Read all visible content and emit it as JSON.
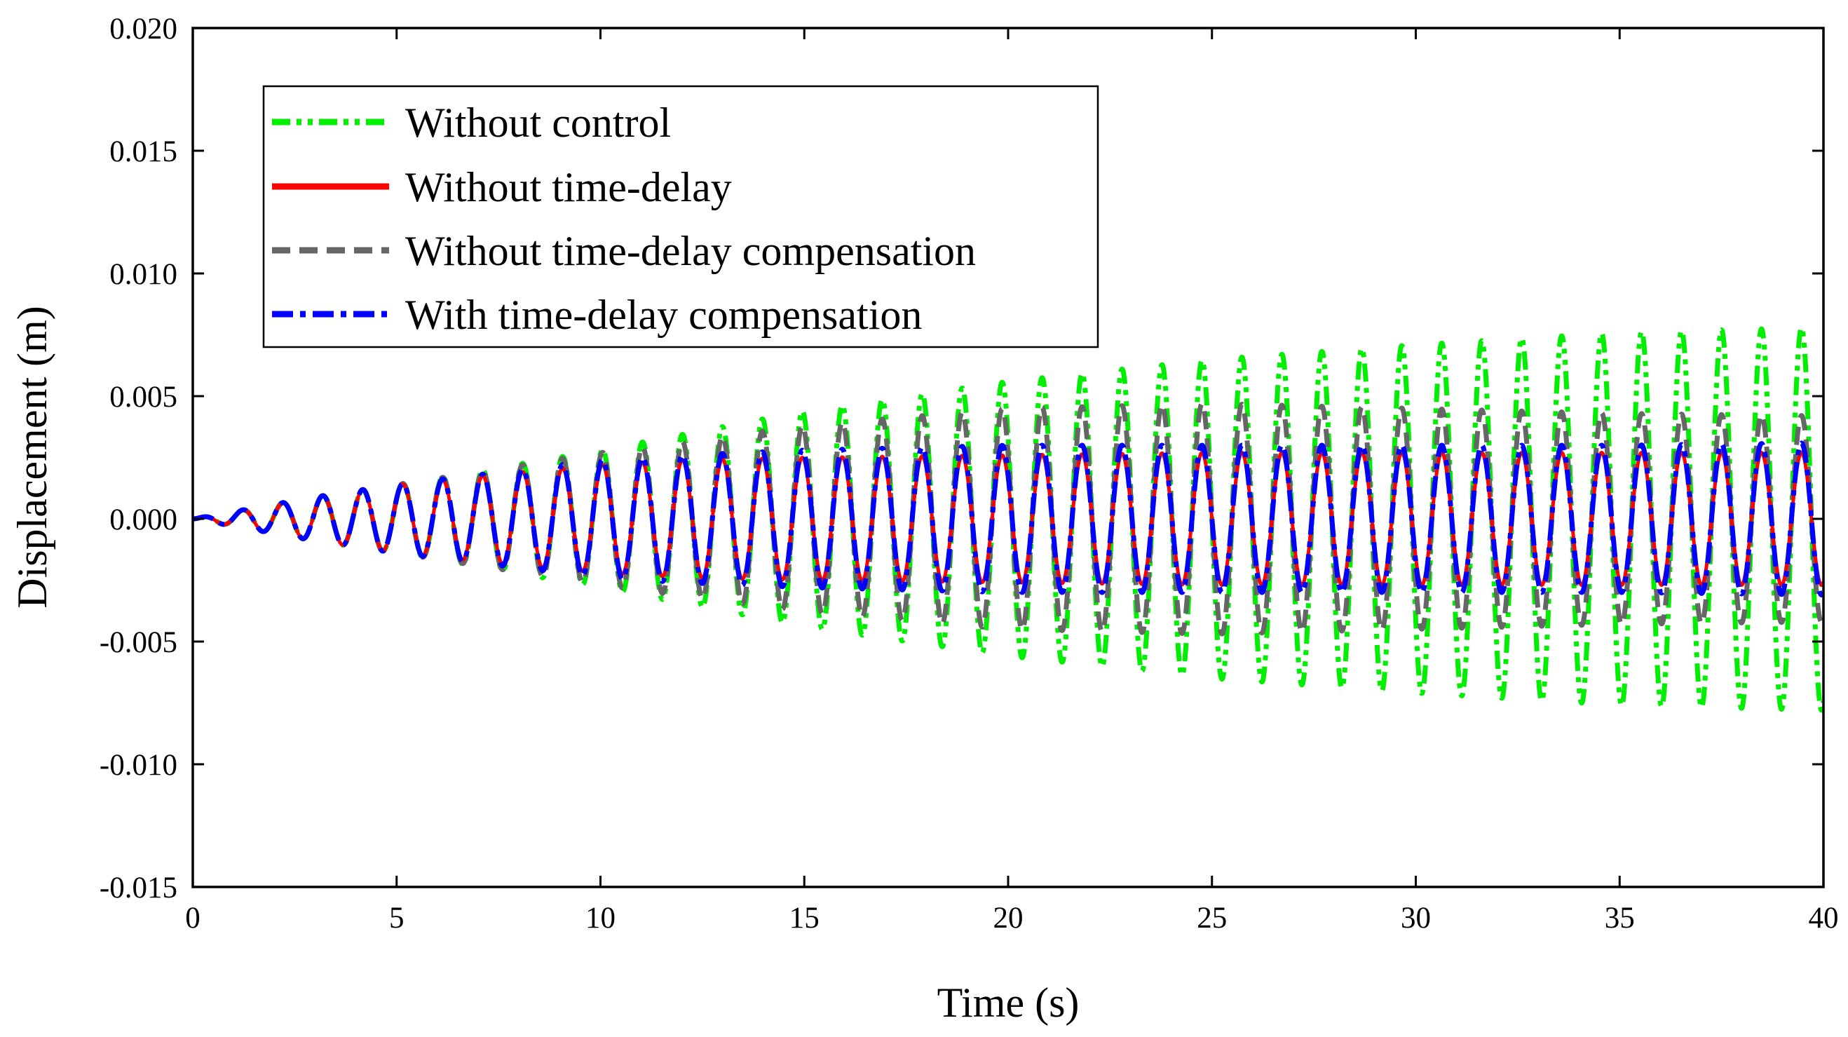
{
  "chart_data": {
    "type": "line",
    "title": "",
    "xlabel": "Time (s)",
    "ylabel": "Displacement (m)",
    "xlim": [
      0,
      40
    ],
    "ylim": [
      -0.015,
      0.02
    ],
    "x_ticks": [
      0,
      5,
      10,
      15,
      20,
      25,
      30,
      35,
      40
    ],
    "x_tick_labels": [
      "0",
      "5",
      "10",
      "15",
      "20",
      "25",
      "30",
      "35",
      "40"
    ],
    "y_ticks": [
      -0.015,
      -0.01,
      -0.005,
      0.0,
      0.005,
      0.01,
      0.015,
      0.02
    ],
    "y_tick_labels": [
      "-0.015",
      "-0.010",
      "-0.005",
      "0.000",
      "0.005",
      "0.010",
      "0.015",
      "0.020"
    ],
    "grid": false,
    "legend_position": "top-left",
    "oscillation_frequency_hz": 1.02,
    "series": [
      {
        "name": "Without control",
        "color": "#00ee00",
        "dash": "dash-dot-dot",
        "envelope": {
          "t": [
            0,
            1,
            3,
            5,
            10,
            15,
            20,
            25,
            30,
            35,
            40
          ],
          "amplitude": [
            0.0,
            0.0003,
            0.0009,
            0.0014,
            0.0028,
            0.0044,
            0.0056,
            0.0065,
            0.0071,
            0.0076,
            0.0078
          ]
        }
      },
      {
        "name": "Without time-delay",
        "color": "#ff0000",
        "dash": "solid",
        "envelope": {
          "t": [
            0,
            1,
            3,
            5,
            8,
            10,
            12,
            15,
            20,
            25,
            30,
            35,
            40
          ],
          "amplitude": [
            0.0,
            0.0003,
            0.0009,
            0.0014,
            0.0019,
            0.0022,
            0.0024,
            0.0025,
            0.0026,
            0.0027,
            0.0027,
            0.0027,
            0.0027
          ]
        }
      },
      {
        "name": "Without time-delay compensation",
        "color": "#666666",
        "dash": "dashed",
        "envelope": {
          "t": [
            0,
            1,
            3,
            5,
            10,
            15,
            20,
            25,
            30,
            35,
            40
          ],
          "amplitude": [
            0.0,
            0.0003,
            0.0009,
            0.0014,
            0.0027,
            0.0038,
            0.0045,
            0.0047,
            0.0045,
            0.0043,
            0.0042
          ]
        }
      },
      {
        "name": "With time-delay compensation",
        "color": "#0000ff",
        "dash": "dash-dot",
        "envelope": {
          "t": [
            0,
            1,
            3,
            5,
            8,
            10,
            12,
            15,
            20,
            25,
            30,
            35,
            40
          ],
          "amplitude": [
            0.0,
            0.0003,
            0.0009,
            0.0014,
            0.002,
            0.0024,
            0.0026,
            0.0028,
            0.003,
            0.003,
            0.003,
            0.003,
            0.0031
          ]
        }
      }
    ]
  }
}
